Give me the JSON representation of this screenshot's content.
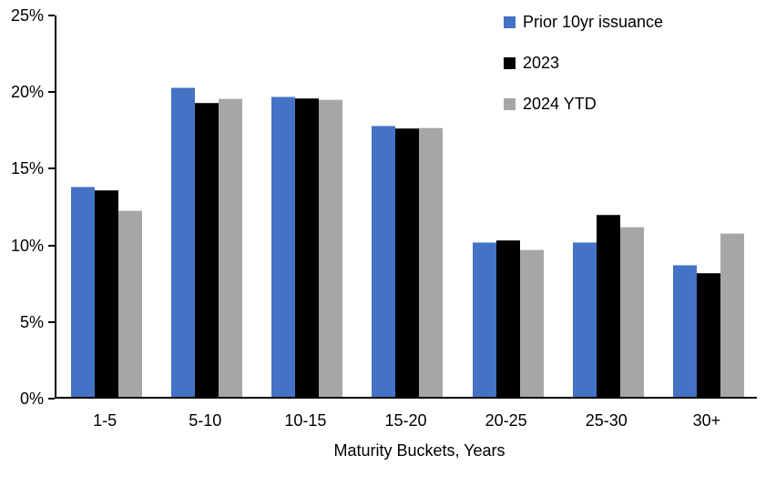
{
  "chart_data": {
    "type": "bar",
    "title": "",
    "xlabel": "Maturity Buckets, Years",
    "ylabel": "",
    "categories": [
      "1-5",
      "5-10",
      "10-15",
      "15-20",
      "20-25",
      "25-30",
      "30+"
    ],
    "series": [
      {
        "name": "Prior 10yr issuance",
        "color": "#4472C4",
        "edge_color": "#9DB7E4",
        "values": [
          13.7,
          20.2,
          19.6,
          17.7,
          10.1,
          10.1,
          8.6
        ]
      },
      {
        "name": "2023",
        "color": "#000000",
        "edge_color": "#3A3A3A",
        "values": [
          13.5,
          19.2,
          19.5,
          17.5,
          10.2,
          11.9,
          8.1
        ]
      },
      {
        "name": "2024 YTD",
        "color": "#A6A6A6",
        "edge_color": "#E2E2E2",
        "values": [
          12.2,
          19.5,
          19.4,
          17.6,
          9.6,
          11.1,
          10.7
        ]
      }
    ],
    "ylim": [
      0,
      25
    ],
    "ytick_step": 5,
    "ytick_labels": [
      "0%",
      "5%",
      "10%",
      "15%",
      "20%",
      "25%"
    ],
    "grid": false,
    "legend_position": "top-right",
    "axis_color": "#000000"
  }
}
